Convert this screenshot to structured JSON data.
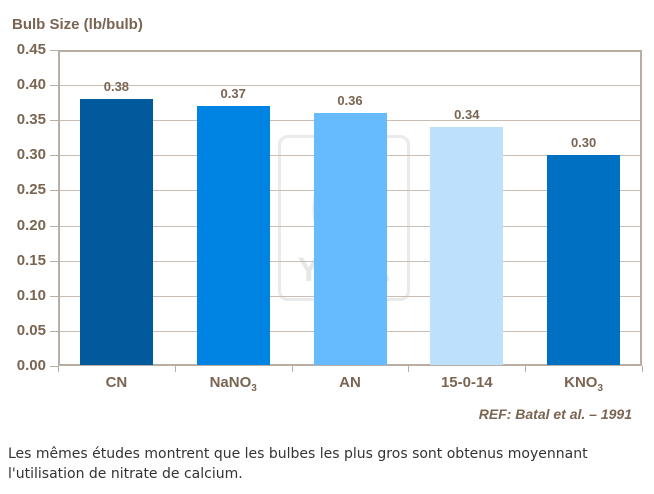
{
  "chart_data": {
    "type": "bar",
    "title": "",
    "ylabel": "Bulb Size (lb/bulb)",
    "xlabel": "",
    "ylim": [
      0,
      0.45
    ],
    "yticks": [
      "0.00",
      "0.05",
      "0.10",
      "0.15",
      "0.20",
      "0.25",
      "0.30",
      "0.35",
      "0.40",
      "0.45"
    ],
    "grid": true,
    "categories": [
      "CN",
      "NaNO3",
      "AN",
      "15-0-14",
      "KNO3"
    ],
    "values": [
      0.38,
      0.37,
      0.36,
      0.34,
      0.3
    ],
    "value_labels": [
      "0.38",
      "0.37",
      "0.36",
      "0.34",
      "0.30"
    ],
    "bar_colors": [
      "#005a9c",
      "#0084e3",
      "#66bbff",
      "#bde0fd",
      "#0071c2"
    ],
    "annotation": "REF: Batal et al. – 1991",
    "watermark": "YARA"
  },
  "labels": {
    "ylabel": "Bulb Size (lb/bulb)",
    "categories": [
      {
        "main": "CN",
        "sub": ""
      },
      {
        "main": "NaNO",
        "sub": "3"
      },
      {
        "main": "AN",
        "sub": ""
      },
      {
        "main": "15-0-14",
        "sub": ""
      },
      {
        "main": "KNO",
        "sub": "3"
      }
    ],
    "ref": "REF: Batal et al. – 1991",
    "watermark": "YARA",
    "watermark_glyph": "(((",
    "caption": "Les mêmes études montrent que les bulbes les plus gros sont obtenus moyennant l'utilisation de nitrate de calcium."
  }
}
